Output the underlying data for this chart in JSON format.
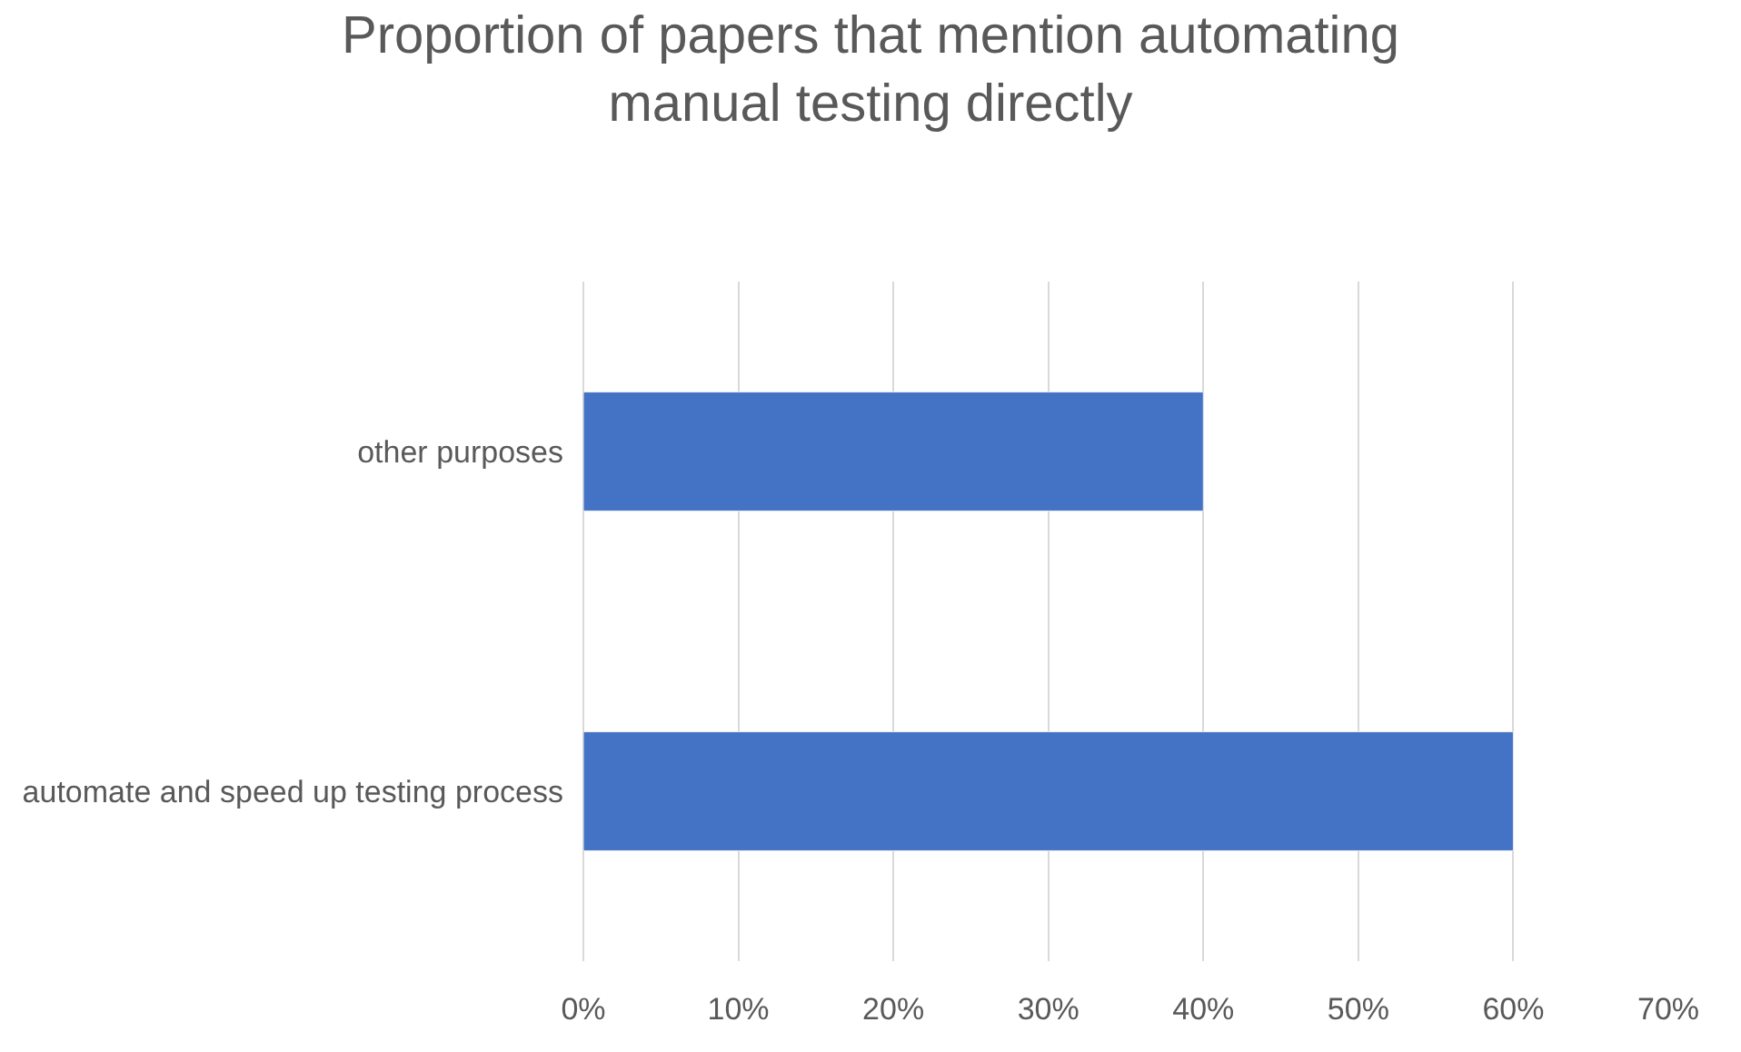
{
  "chart_data": {
    "type": "bar",
    "orientation": "horizontal",
    "title": "Proportion of papers that mention automating manual testing directly",
    "categories": [
      "other purposes",
      "automate and speed up testing process"
    ],
    "values": [
      40,
      60
    ],
    "color": "#4472c4",
    "xlim": [
      0,
      70
    ],
    "xticks": [
      {
        "value": 0,
        "label": "0%"
      },
      {
        "value": 10,
        "label": "10%"
      },
      {
        "value": 20,
        "label": "20%"
      },
      {
        "value": 30,
        "label": "30%"
      },
      {
        "value": 40,
        "label": "40%"
      },
      {
        "value": 50,
        "label": "50%"
      },
      {
        "value": 60,
        "label": "60%"
      },
      {
        "value": 70,
        "label": "70%"
      }
    ],
    "grid": "x"
  }
}
